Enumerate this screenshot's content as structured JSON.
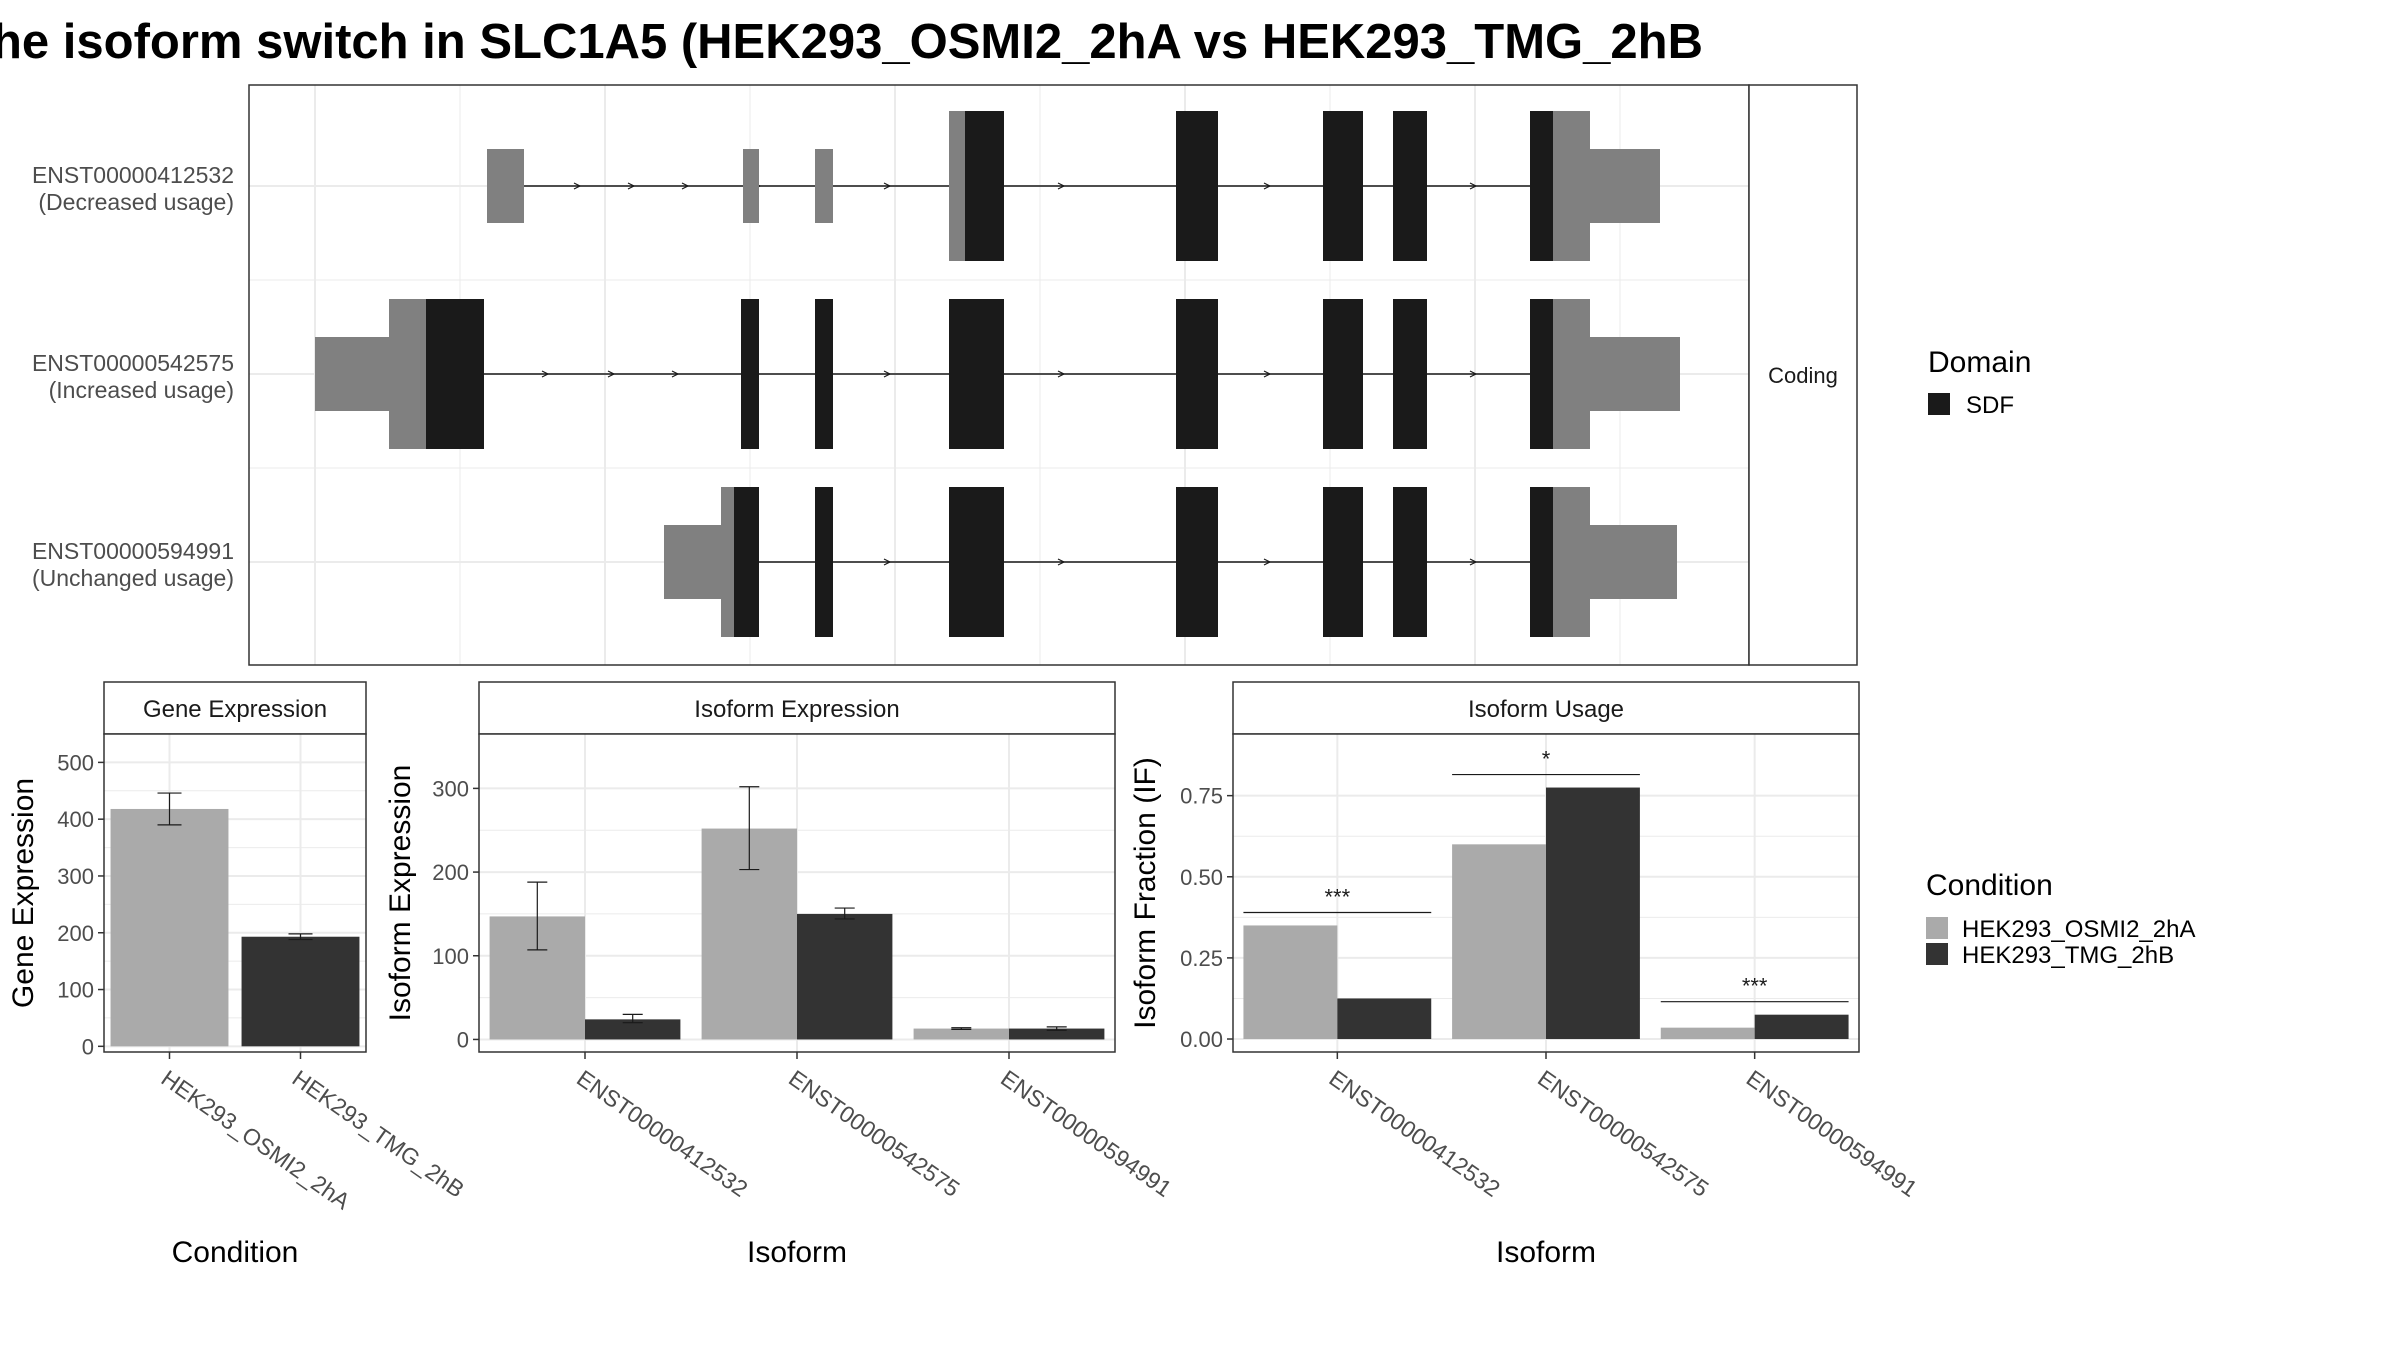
{
  "title": "he isoform switch in SLC1A5 (HEK293_OSMI2_2hA vs HEK293_TMG_2hB",
  "colors": {
    "exon_dark": "#1a1a1a",
    "exon_utr": "#808080",
    "cond_a": "#aaaaaa",
    "cond_b": "#333333",
    "grid": "#ebebeb",
    "strip_bg": "#ffffff"
  },
  "structure": {
    "strip_label": "Coding",
    "isoforms": [
      {
        "id": "ENST00000412532",
        "usage": "(Decreased usage)"
      },
      {
        "id": "ENST00000542575",
        "usage": "(Increased usage)"
      },
      {
        "id": "ENST00000594991",
        "usage": "(Unchanged usage)"
      }
    ],
    "domain_legend": {
      "title": "Domain",
      "items": [
        "SDF"
      ]
    }
  },
  "condition_legend": {
    "title": "Condition",
    "items": [
      "HEK293_OSMI2_2hA",
      "HEK293_TMG_2hB"
    ]
  },
  "chart_data": [
    {
      "type": "bar",
      "title": "Gene Expression",
      "xlabel": "Condition",
      "ylabel": "Gene Expression",
      "categories": [
        "HEK293_OSMI2_2hA",
        "HEK293_TMG_2hB"
      ],
      "values": [
        418,
        193
      ],
      "error_low": [
        390,
        188
      ],
      "error_high": [
        446,
        198
      ],
      "ylim": [
        -10,
        550
      ],
      "yticks": [
        0,
        100,
        200,
        300,
        400,
        500
      ],
      "ytick_labels": [
        "0",
        "100",
        "200",
        "300",
        "400",
        "500"
      ],
      "grid": true
    },
    {
      "type": "bar",
      "title": "Isoform Expression",
      "xlabel": "Isoform",
      "ylabel": "Isoform Expression",
      "categories": [
        "ENST00000412532",
        "ENST00000542575",
        "ENST00000594991"
      ],
      "series": [
        {
          "name": "HEK293_OSMI2_2hA",
          "values": [
            147,
            252,
            13
          ],
          "error_low": [
            107,
            203,
            12
          ],
          "error_high": [
            188,
            302,
            14
          ]
        },
        {
          "name": "HEK293_TMG_2hB",
          "values": [
            24,
            150,
            13
          ],
          "error_low": [
            20,
            144,
            11
          ],
          "error_high": [
            30,
            157,
            15
          ]
        }
      ],
      "ylim": [
        -15,
        365
      ],
      "yticks": [
        0,
        100,
        200,
        300
      ],
      "ytick_labels": [
        "0",
        "100",
        "200",
        "300"
      ],
      "grid": true
    },
    {
      "type": "bar",
      "title": "Isoform Usage",
      "xlabel": "Isoform",
      "ylabel": "Isoform Fraction (IF)",
      "categories": [
        "ENST00000412532",
        "ENST00000542575",
        "ENST00000594991"
      ],
      "series": [
        {
          "name": "HEK293_OSMI2_2hA",
          "values": [
            0.35,
            0.6,
            0.035
          ]
        },
        {
          "name": "HEK293_TMG_2hB",
          "values": [
            0.125,
            0.775,
            0.075
          ]
        }
      ],
      "significance": [
        "***",
        "*",
        "***"
      ],
      "significance_y": [
        0.39,
        0.815,
        0.115
      ],
      "ylim": [
        -0.04,
        0.94
      ],
      "yticks": [
        0,
        0.25,
        0.5,
        0.75
      ],
      "ytick_labels": [
        "0.00",
        "0.25",
        "0.50",
        "0.75"
      ],
      "grid": true
    }
  ]
}
